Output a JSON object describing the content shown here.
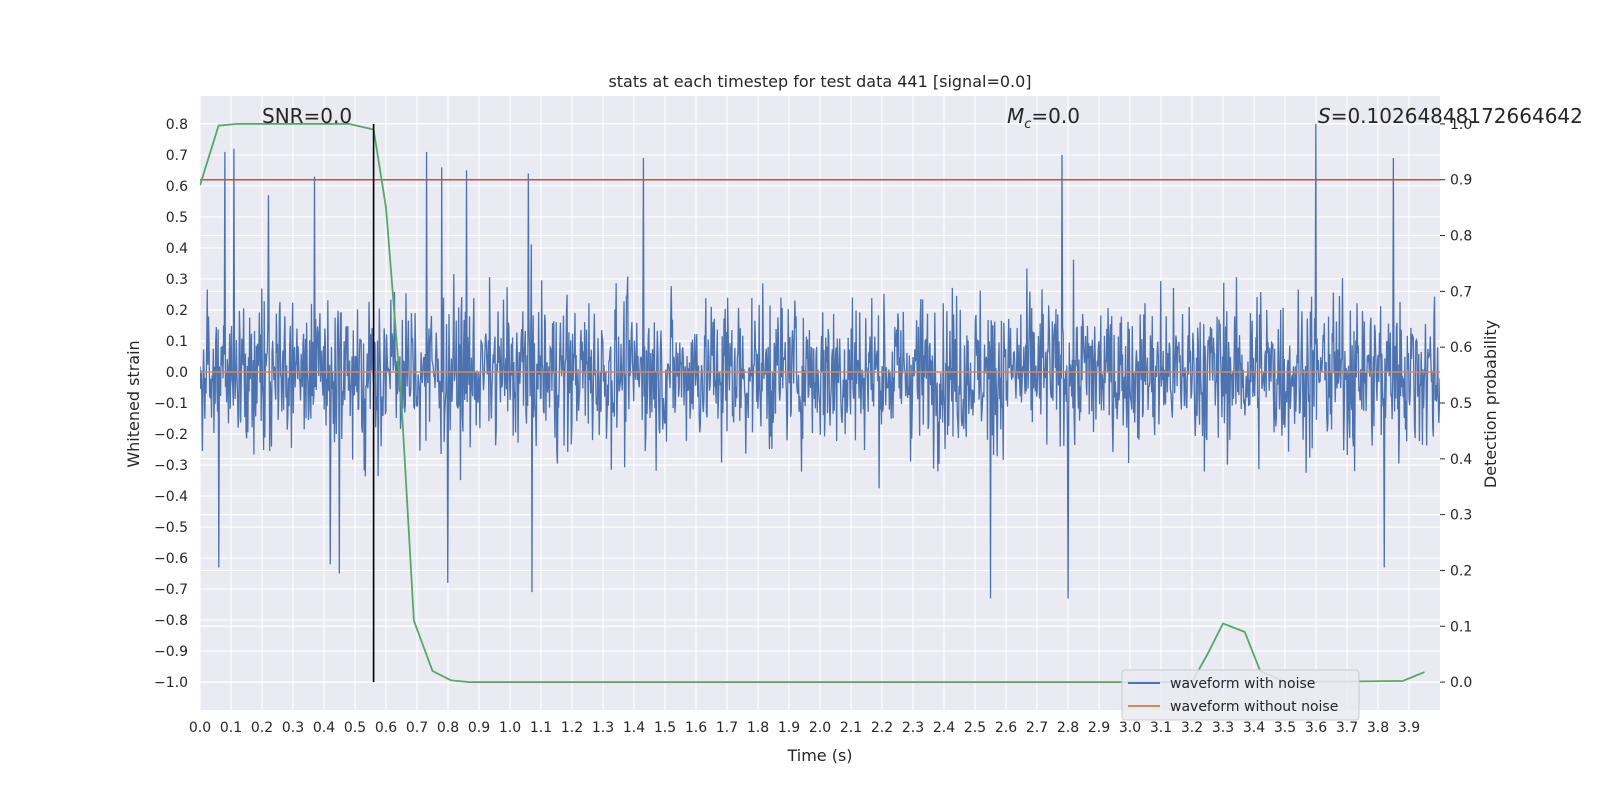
{
  "chart_data": {
    "type": "line",
    "title": "stats at each timestep for test data 441 [signal=0.0]",
    "xlabel": "Time (s)",
    "ylabel": "Whitened strain",
    "ylabel_right": "Detection probability",
    "xlim": [
      0.0,
      4.0
    ],
    "ylim": [
      -1.09,
      0.89
    ],
    "ylim_right": [
      -0.05,
      1.05
    ],
    "grid": true,
    "legend_position": "lower-right",
    "x_ticks": [
      "0.0",
      "0.1",
      "0.2",
      "0.3",
      "0.4",
      "0.5",
      "0.6",
      "0.7",
      "0.8",
      "0.9",
      "1.0",
      "1.1",
      "1.2",
      "1.3",
      "1.4",
      "1.5",
      "1.6",
      "1.7",
      "1.8",
      "1.9",
      "2.0",
      "2.1",
      "2.2",
      "2.3",
      "2.4",
      "2.5",
      "2.6",
      "2.7",
      "2.8",
      "2.9",
      "3.0",
      "3.1",
      "3.2",
      "3.3",
      "3.4",
      "3.5",
      "3.6",
      "3.7",
      "3.8",
      "3.9"
    ],
    "y_ticks": [
      "0.8",
      "0.7",
      "0.6",
      "0.5",
      "0.4",
      "0.3",
      "0.2",
      "0.1",
      "0.0",
      "−0.1",
      "−0.2",
      "−0.3",
      "−0.4",
      "−0.5",
      "−0.6",
      "−0.7",
      "−0.8",
      "−0.9",
      "−1.0"
    ],
    "y_ticks_right": [
      "1.0",
      "0.9",
      "0.8",
      "0.7",
      "0.6",
      "0.5",
      "0.4",
      "0.3",
      "0.2",
      "0.1",
      "0.0"
    ],
    "annotations": {
      "snr": "SNR=0.0",
      "mc_symbol": "M",
      "mc_sub": "c",
      "mc_value": "=0.0",
      "s_symbol": "S",
      "s_value": "=0.10264848172664642"
    },
    "series": [
      {
        "name": "waveform with noise",
        "color": "#4c72b0",
        "kind": "noise",
        "peaks": [
          {
            "x": 0.08,
            "y": 0.71
          },
          {
            "x": 0.11,
            "y": 0.72
          },
          {
            "x": 0.22,
            "y": 0.57
          },
          {
            "x": 0.37,
            "y": 0.63
          },
          {
            "x": 0.73,
            "y": 0.71
          },
          {
            "x": 0.78,
            "y": 0.66
          },
          {
            "x": 0.86,
            "y": 0.65
          },
          {
            "x": 1.06,
            "y": 0.64
          },
          {
            "x": 1.43,
            "y": 0.69
          },
          {
            "x": 2.78,
            "y": 0.7
          },
          {
            "x": 3.6,
            "y": 0.8
          },
          {
            "x": 3.85,
            "y": 0.69
          }
        ],
        "troughs": [
          {
            "x": 0.06,
            "y": -0.63
          },
          {
            "x": 0.42,
            "y": -0.62
          },
          {
            "x": 0.45,
            "y": -0.65
          },
          {
            "x": 0.8,
            "y": -0.68
          },
          {
            "x": 1.07,
            "y": -0.71
          },
          {
            "x": 2.55,
            "y": -0.73
          },
          {
            "x": 2.8,
            "y": -0.73
          },
          {
            "x": 3.82,
            "y": -0.63
          }
        ]
      },
      {
        "name": "waveform without noise",
        "color": "#dd8452",
        "x": [
          0.0,
          4.0
        ],
        "y": [
          0.0,
          0.0
        ]
      },
      {
        "name": "detection probability",
        "color": "#55a868",
        "axis": "right",
        "x": [
          0.0,
          0.06,
          0.12,
          0.18,
          0.24,
          0.3,
          0.36,
          0.42,
          0.48,
          0.56,
          0.6,
          0.65,
          0.69,
          0.75,
          0.81,
          0.87,
          1.0,
          3.0,
          3.2,
          3.25,
          3.3,
          3.37,
          3.42,
          3.5,
          3.88,
          3.95
        ],
        "y": [
          0.89,
          0.997,
          1.0,
          1.0,
          1.0,
          1.0,
          1.0,
          1.0,
          1.0,
          0.99,
          0.85,
          0.5,
          0.11,
          0.02,
          0.003,
          0.0,
          0.0,
          0.0,
          0.0,
          0.05,
          0.105,
          0.09,
          0.02,
          0.0,
          0.002,
          0.018
        ]
      }
    ],
    "threshold_line": {
      "y_right": 0.9,
      "color": "#c44e52"
    },
    "marker_line": {
      "x": 0.56,
      "color": "#000000",
      "y_range": [
        -1.0,
        0.8
      ]
    }
  }
}
